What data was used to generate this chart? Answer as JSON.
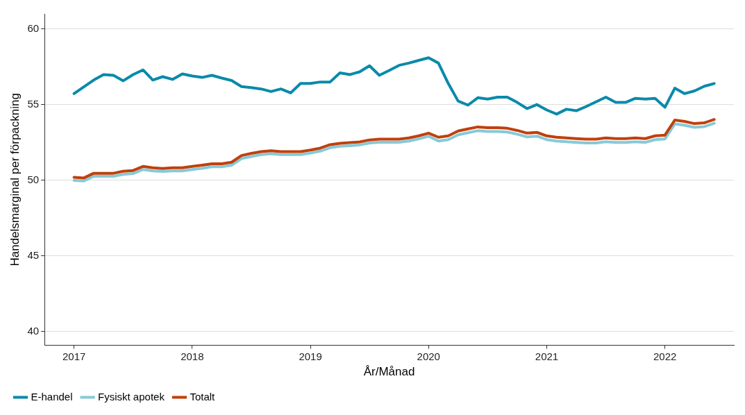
{
  "chart_data": {
    "type": "line",
    "xlabel": "År/Månad",
    "ylabel": "Handelsmarginal per förpackning",
    "x": [
      "2017-01",
      "2017-02",
      "2017-03",
      "2017-04",
      "2017-05",
      "2017-06",
      "2017-07",
      "2017-08",
      "2017-09",
      "2017-10",
      "2017-11",
      "2017-12",
      "2018-01",
      "2018-02",
      "2018-03",
      "2018-04",
      "2018-05",
      "2018-06",
      "2018-07",
      "2018-08",
      "2018-09",
      "2018-10",
      "2018-11",
      "2018-12",
      "2019-01",
      "2019-02",
      "2019-03",
      "2019-04",
      "2019-05",
      "2019-06",
      "2019-07",
      "2019-08",
      "2019-09",
      "2019-10",
      "2019-11",
      "2019-12",
      "2020-01",
      "2020-02",
      "2020-03",
      "2020-04",
      "2020-05",
      "2020-06",
      "2020-07",
      "2020-08",
      "2020-09",
      "2020-10",
      "2020-11",
      "2020-12",
      "2021-01",
      "2021-02",
      "2021-03",
      "2021-04",
      "2021-05",
      "2021-06",
      "2021-07",
      "2021-08",
      "2021-09",
      "2021-10",
      "2021-11",
      "2021-12",
      "2022-01",
      "2022-02",
      "2022-03",
      "2022-04",
      "2022-05",
      "2022-06"
    ],
    "series": [
      {
        "name": "E-handel",
        "color": "#0a8aaa",
        "values": [
          55.73,
          56.18,
          56.63,
          56.99,
          56.94,
          56.58,
          56.99,
          57.3,
          56.63,
          56.85,
          56.67,
          57.03,
          56.9,
          56.8,
          56.94,
          56.76,
          56.6,
          56.2,
          56.13,
          56.04,
          55.87,
          56.04,
          55.78,
          56.4,
          56.4,
          56.5,
          56.5,
          57.1,
          56.99,
          57.17,
          57.57,
          56.94,
          57.26,
          57.6,
          57.75,
          57.93,
          58.1,
          57.75,
          56.4,
          55.24,
          54.97,
          55.46,
          55.37,
          55.5,
          55.5,
          55.15,
          54.74,
          55.01,
          54.65,
          54.38,
          54.7,
          54.6,
          54.88,
          55.19,
          55.5,
          55.15,
          55.15,
          55.42,
          55.37,
          55.42,
          54.83,
          56.09,
          55.73,
          55.91,
          56.22,
          56.4
        ]
      },
      {
        "name": "Fysiskt apotek",
        "color": "#86c9d8",
        "values": [
          50.0,
          49.96,
          50.27,
          50.27,
          50.27,
          50.4,
          50.45,
          50.72,
          50.63,
          50.59,
          50.63,
          50.63,
          50.72,
          50.8,
          50.9,
          50.9,
          51.0,
          51.44,
          51.58,
          51.7,
          51.76,
          51.7,
          51.7,
          51.7,
          51.8,
          51.93,
          52.16,
          52.25,
          52.29,
          52.34,
          52.47,
          52.52,
          52.52,
          52.52,
          52.6,
          52.74,
          52.92,
          52.6,
          52.69,
          53.01,
          53.15,
          53.28,
          53.23,
          53.23,
          53.19,
          53.05,
          52.87,
          52.92,
          52.69,
          52.6,
          52.55,
          52.51,
          52.47,
          52.47,
          52.55,
          52.51,
          52.51,
          52.55,
          52.51,
          52.69,
          52.74,
          53.73,
          53.64,
          53.5,
          53.55,
          53.77
        ]
      },
      {
        "name": "Totalt",
        "color": "#c0400c",
        "values": [
          50.2,
          50.16,
          50.47,
          50.47,
          50.47,
          50.6,
          50.65,
          50.92,
          50.83,
          50.79,
          50.83,
          50.83,
          50.92,
          51.0,
          51.1,
          51.1,
          51.2,
          51.64,
          51.78,
          51.9,
          51.96,
          51.9,
          51.9,
          51.9,
          52.0,
          52.13,
          52.36,
          52.45,
          52.49,
          52.54,
          52.67,
          52.72,
          52.72,
          52.72,
          52.8,
          52.94,
          53.12,
          52.85,
          52.94,
          53.26,
          53.4,
          53.53,
          53.48,
          53.48,
          53.44,
          53.3,
          53.12,
          53.17,
          52.94,
          52.85,
          52.8,
          52.76,
          52.72,
          52.72,
          52.8,
          52.76,
          52.76,
          52.8,
          52.76,
          52.94,
          52.99,
          53.98,
          53.89,
          53.75,
          53.8,
          54.02
        ]
      }
    ],
    "xlim": [
      "2016-10",
      "2022-08"
    ],
    "xticks": [
      "2017",
      "2018",
      "2019",
      "2020",
      "2021",
      "2022"
    ],
    "ylim": [
      39.1,
      61
    ],
    "yticks": [
      40,
      45,
      50,
      55,
      60
    ],
    "grid": "y",
    "legend": "bottom left",
    "marker": "none",
    "line_style": "solid"
  }
}
